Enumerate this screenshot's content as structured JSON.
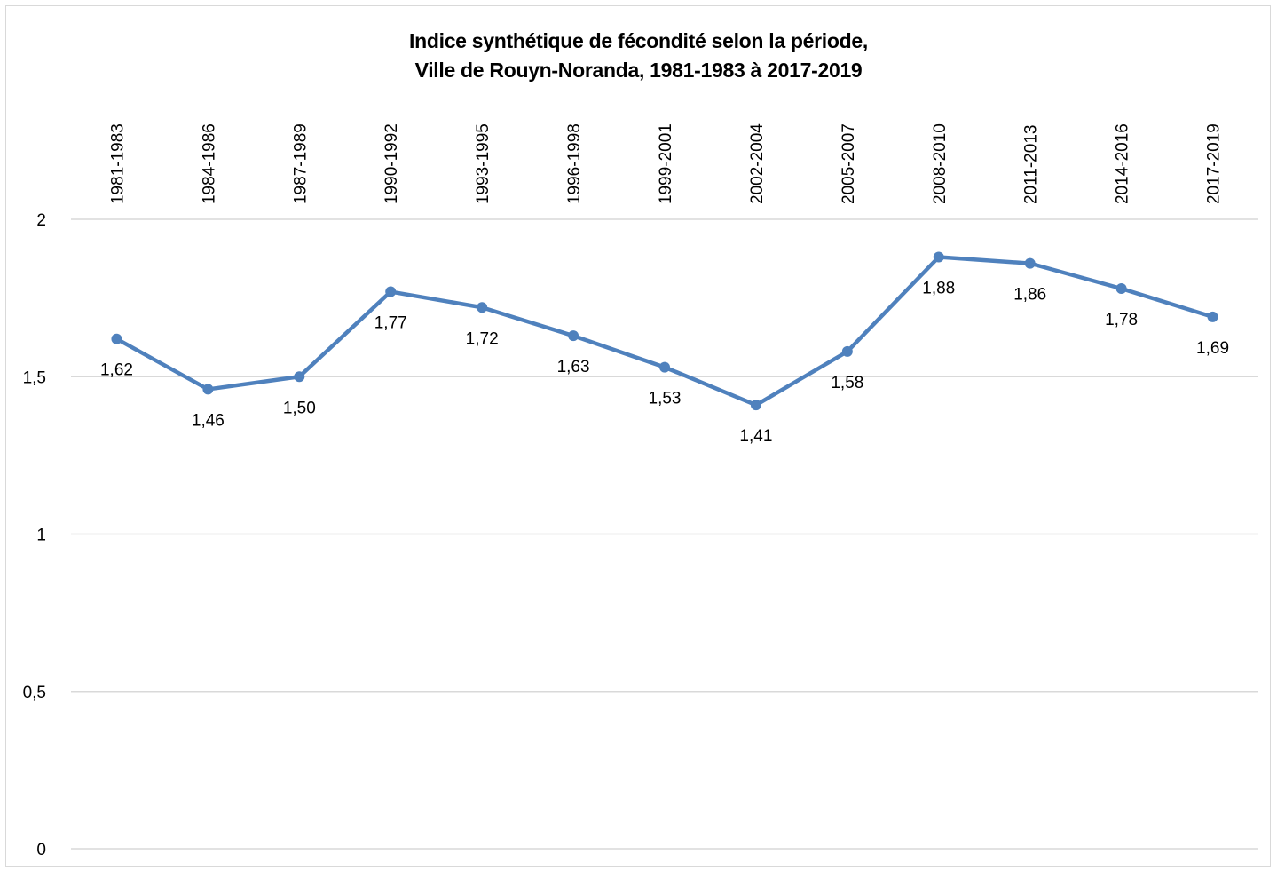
{
  "chart_data": {
    "type": "line",
    "title_line1": "Indice synthétique de fécondité selon la période,",
    "title_line2": "Ville de Rouyn-Noranda,  1981-1983  à 2017-2019",
    "categories": [
      "1981-1983",
      "1984-1986",
      "1987-1989",
      "1990-1992",
      "1993-1995",
      "1996-1998",
      "1999-2001",
      "2002-2004",
      "2005-2007",
      "2008-2010",
      "2011-2013",
      "2014-2016",
      "2017-2019"
    ],
    "series": [
      {
        "values": [
          1.62,
          1.46,
          1.5,
          1.77,
          1.72,
          1.63,
          1.53,
          1.41,
          1.58,
          1.88,
          1.86,
          1.78,
          1.69
        ],
        "labels": [
          "1,62",
          "1,46",
          "1,50",
          "1,77",
          "1,72",
          "1,63",
          "1,53",
          "1,41",
          "1,58",
          "1,88",
          "1,86",
          "1,78",
          "1,69"
        ],
        "color": "#4f81bd"
      }
    ],
    "y_ticks": [
      0,
      0.5,
      1,
      1.5,
      2
    ],
    "y_tick_labels": [
      "0",
      "0,5",
      "1",
      "1,5",
      "2"
    ],
    "ylim": [
      0,
      2
    ],
    "grid": true,
    "gridline_color": "#d9d9d9",
    "category_axis_position": "top"
  }
}
